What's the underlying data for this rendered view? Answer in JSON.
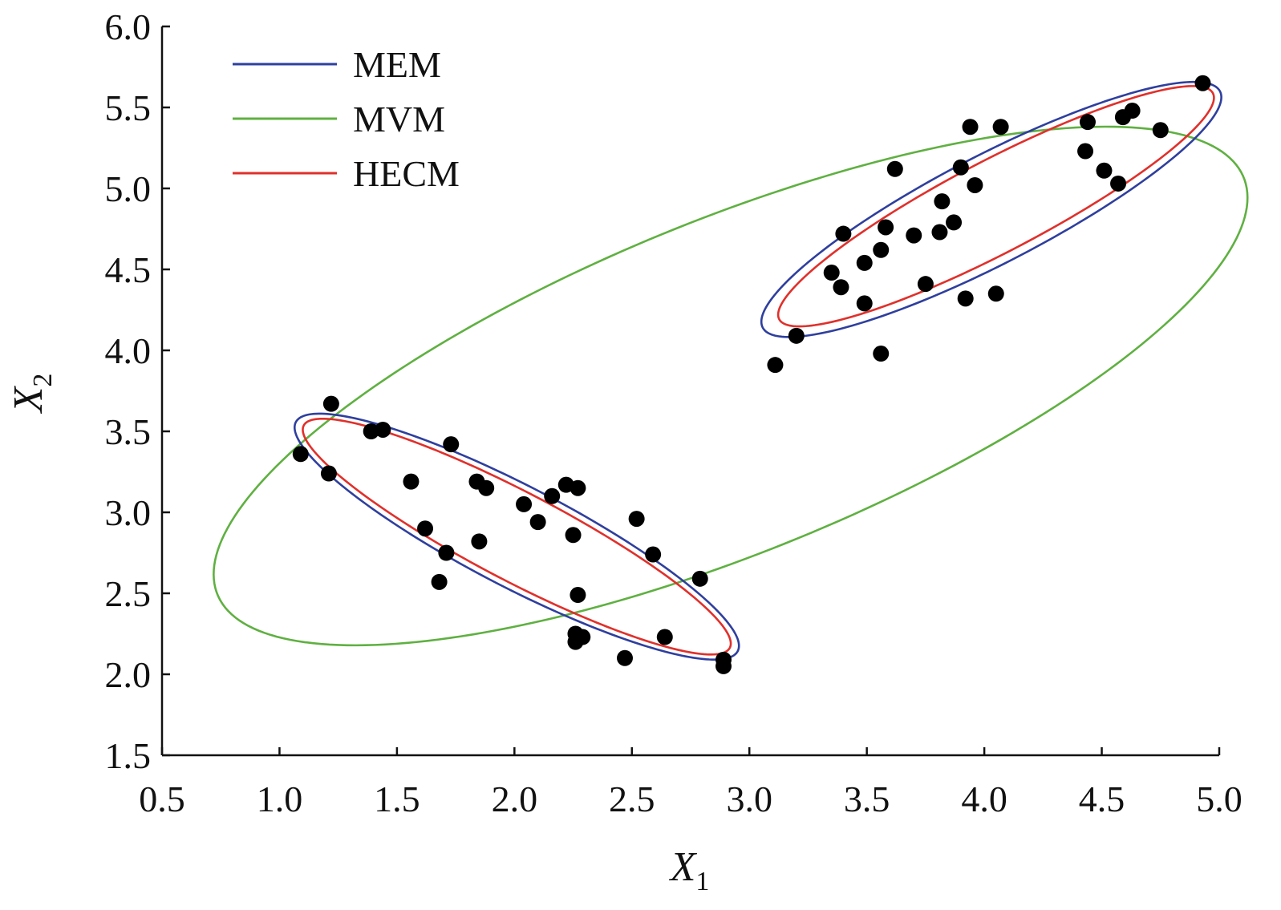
{
  "chart_data": {
    "type": "scatter",
    "title": "",
    "xlabel": {
      "base": "X",
      "subscript": "1"
    },
    "ylabel": {
      "base": "X",
      "subscript": "2"
    },
    "xlim": [
      0.5,
      5.0
    ],
    "ylim": [
      1.5,
      6.0
    ],
    "x_ticks": [
      "0.5",
      "1.0",
      "1.5",
      "2.0",
      "2.5",
      "3.0",
      "3.5",
      "4.0",
      "4.5",
      "5.0"
    ],
    "y_ticks": [
      "1.5",
      "2.0",
      "2.5",
      "3.0",
      "3.5",
      "4.0",
      "4.5",
      "5.0",
      "5.5",
      "6.0"
    ],
    "grid": false,
    "legend_position": "top-left",
    "legend": [
      {
        "name": "MEM",
        "color": "#2e3f9e"
      },
      {
        "name": "MVM",
        "color": "#5fb041"
      },
      {
        "name": "HECM",
        "color": "#e0302b"
      }
    ],
    "points": [
      {
        "x": 1.09,
        "y": 3.36
      },
      {
        "x": 1.21,
        "y": 3.24
      },
      {
        "x": 1.22,
        "y": 3.67
      },
      {
        "x": 1.39,
        "y": 3.5
      },
      {
        "x": 1.44,
        "y": 3.51
      },
      {
        "x": 1.56,
        "y": 3.19
      },
      {
        "x": 1.62,
        "y": 2.9
      },
      {
        "x": 1.68,
        "y": 2.57
      },
      {
        "x": 1.71,
        "y": 2.75
      },
      {
        "x": 1.73,
        "y": 3.42
      },
      {
        "x": 1.84,
        "y": 3.19
      },
      {
        "x": 1.85,
        "y": 2.82
      },
      {
        "x": 1.88,
        "y": 3.15
      },
      {
        "x": 2.04,
        "y": 3.05
      },
      {
        "x": 2.1,
        "y": 2.94
      },
      {
        "x": 2.16,
        "y": 3.1
      },
      {
        "x": 2.22,
        "y": 3.17
      },
      {
        "x": 2.25,
        "y": 2.86
      },
      {
        "x": 2.26,
        "y": 2.25
      },
      {
        "x": 2.26,
        "y": 2.2
      },
      {
        "x": 2.27,
        "y": 3.15
      },
      {
        "x": 2.27,
        "y": 2.49
      },
      {
        "x": 2.29,
        "y": 2.23
      },
      {
        "x": 2.47,
        "y": 2.1
      },
      {
        "x": 2.52,
        "y": 2.96
      },
      {
        "x": 2.59,
        "y": 2.74
      },
      {
        "x": 2.64,
        "y": 2.23
      },
      {
        "x": 2.79,
        "y": 2.59
      },
      {
        "x": 2.89,
        "y": 2.09
      },
      {
        "x": 2.89,
        "y": 2.05
      },
      {
        "x": 3.11,
        "y": 3.91
      },
      {
        "x": 3.2,
        "y": 4.09
      },
      {
        "x": 3.35,
        "y": 4.48
      },
      {
        "x": 3.39,
        "y": 4.39
      },
      {
        "x": 3.4,
        "y": 4.72
      },
      {
        "x": 3.49,
        "y": 4.29
      },
      {
        "x": 3.49,
        "y": 4.54
      },
      {
        "x": 3.56,
        "y": 4.62
      },
      {
        "x": 3.56,
        "y": 3.98
      },
      {
        "x": 3.58,
        "y": 4.76
      },
      {
        "x": 3.62,
        "y": 5.12
      },
      {
        "x": 3.7,
        "y": 4.71
      },
      {
        "x": 3.75,
        "y": 4.41
      },
      {
        "x": 3.81,
        "y": 4.73
      },
      {
        "x": 3.82,
        "y": 4.92
      },
      {
        "x": 3.87,
        "y": 4.79
      },
      {
        "x": 3.9,
        "y": 5.13
      },
      {
        "x": 3.92,
        "y": 4.32
      },
      {
        "x": 3.94,
        "y": 5.38
      },
      {
        "x": 3.96,
        "y": 5.02
      },
      {
        "x": 4.05,
        "y": 4.35
      },
      {
        "x": 4.07,
        "y": 5.38
      },
      {
        "x": 4.43,
        "y": 5.23
      },
      {
        "x": 4.44,
        "y": 5.41
      },
      {
        "x": 4.51,
        "y": 5.11
      },
      {
        "x": 4.57,
        "y": 5.03
      },
      {
        "x": 4.59,
        "y": 5.44
      },
      {
        "x": 4.63,
        "y": 5.48
      },
      {
        "x": 4.75,
        "y": 5.36
      },
      {
        "x": 4.93,
        "y": 5.65
      }
    ],
    "ellipses": [
      {
        "series": "MVM",
        "color": "#5fb041",
        "cx": 2.92,
        "cy": 3.78,
        "rx": 2.55,
        "ry": 0.95,
        "angle_deg": 33
      },
      {
        "series": "MEM",
        "color": "#2e3f9e",
        "cx": 2.01,
        "cy": 2.85,
        "rx": 1.18,
        "ry": 0.28,
        "angle_deg": -38
      },
      {
        "series": "HECM",
        "color": "#e0302b",
        "cx": 2.01,
        "cy": 2.85,
        "rx": 1.14,
        "ry": 0.245,
        "angle_deg": -38
      },
      {
        "series": "MEM",
        "color": "#2e3f9e",
        "cx": 4.03,
        "cy": 4.87,
        "rx": 1.22,
        "ry": 0.3,
        "angle_deg": 38
      },
      {
        "series": "HECM",
        "color": "#e0302b",
        "cx": 4.05,
        "cy": 4.89,
        "rx": 1.16,
        "ry": 0.255,
        "angle_deg": 38
      }
    ]
  }
}
